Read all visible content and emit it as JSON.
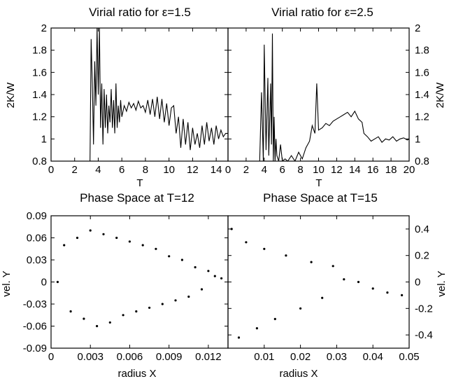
{
  "chart_data": [
    {
      "type": "line",
      "title": "Virial ratio for ε=1.5",
      "xlabel": "T",
      "ylabel": "2K/W",
      "xlim": [
        0,
        15
      ],
      "ylim": [
        0.8,
        2
      ],
      "xticks": [
        "0",
        "2",
        "4",
        "6",
        "8",
        "10",
        "12",
        "14"
      ],
      "yticks": [
        "0.8",
        "1",
        "1.2",
        "1.4",
        "1.6",
        "1.8",
        "2"
      ],
      "grid": false,
      "series": [
        {
          "x": [
            3.3,
            3.4,
            3.5,
            3.6,
            3.7,
            3.8,
            3.9,
            4.0,
            4.1,
            4.2,
            4.3,
            4.4,
            4.5,
            4.6,
            4.7,
            4.8,
            4.9,
            5.0,
            5.1,
            5.2,
            5.3,
            5.4,
            5.5,
            5.6,
            5.7,
            5.8,
            5.9,
            6.0,
            6.2,
            6.4,
            6.6,
            6.8,
            7.0,
            7.2,
            7.4,
            7.6,
            7.8,
            8.0,
            8.2,
            8.4,
            8.6,
            8.8,
            9.0,
            9.2,
            9.4,
            9.6,
            9.8,
            10.0,
            10.2,
            10.4,
            10.6,
            10.8,
            11.0,
            11.2,
            11.4,
            11.6,
            11.8,
            12.0,
            12.2,
            12.4,
            12.6,
            12.8,
            13.0,
            13.2,
            13.4,
            13.6,
            13.8,
            14.0,
            14.2,
            14.4,
            14.6,
            14.8,
            15.0
          ],
          "y": [
            0.8,
            1.9,
            1.5,
            0.95,
            1.7,
            1.3,
            2.0,
            1.4,
            2.0,
            1.1,
            1.5,
            0.95,
            1.45,
            1.1,
            1.4,
            1.05,
            1.3,
            1.15,
            1.45,
            1.1,
            1.35,
            1.05,
            1.5,
            1.1,
            1.3,
            1.15,
            1.35,
            1.2,
            1.3,
            1.25,
            1.33,
            1.28,
            1.32,
            1.26,
            1.34,
            1.28,
            1.3,
            1.24,
            1.35,
            1.22,
            1.36,
            1.2,
            1.38,
            1.18,
            1.36,
            1.15,
            1.32,
            1.12,
            1.28,
            1.3,
            1.05,
            1.2,
            0.92,
            1.18,
            0.95,
            1.15,
            0.9,
            1.1,
            0.95,
            1.05,
            0.92,
            1.12,
            0.95,
            1.15,
            0.98,
            1.1,
            0.95,
            1.12,
            1.0,
            1.08,
            1.02,
            1.05,
            1.05
          ]
        }
      ]
    },
    {
      "type": "line",
      "title": "Virial ratio for ε=2.5",
      "xlabel": "T",
      "ylabel": "2K/W",
      "xlim": [
        0,
        20
      ],
      "ylim": [
        0.8,
        2
      ],
      "xticks": [
        "0",
        "2",
        "4",
        "6",
        "8",
        "10",
        "12",
        "14",
        "16",
        "18",
        "20"
      ],
      "yticks": [
        "0.8",
        "1",
        "1.2",
        "1.4",
        "1.6",
        "1.8",
        "2"
      ],
      "grid": false,
      "series": [
        {
          "x": [
            3.5,
            3.7,
            3.9,
            4.0,
            4.2,
            4.4,
            4.5,
            4.7,
            4.8,
            4.9,
            5.0,
            5.1,
            5.2,
            5.3,
            5.4,
            5.6,
            5.8,
            6.0,
            6.3,
            6.6,
            7.0,
            7.4,
            7.8,
            8.2,
            8.6,
            9.0,
            9.3,
            9.6,
            9.8,
            10.0,
            10.4,
            10.8,
            11.2,
            11.6,
            12.0,
            12.4,
            12.8,
            13.2,
            13.6,
            14.0,
            14.4,
            14.8,
            15.0,
            15.4,
            15.8,
            16.2,
            16.6,
            17.0,
            17.4,
            17.8,
            18.2,
            18.6,
            19.0,
            19.4,
            19.8,
            20.0
          ],
          "y": [
            0.8,
            1.42,
            0.8,
            1.85,
            0.9,
            1.55,
            0.85,
            1.5,
            0.95,
            1.95,
            0.8,
            1.2,
            0.8,
            1.0,
            0.85,
            0.8,
            0.95,
            0.8,
            0.82,
            0.8,
            0.85,
            0.8,
            0.88,
            0.82,
            0.92,
            0.98,
            1.12,
            1.05,
            1.5,
            1.08,
            1.1,
            1.14,
            1.12,
            1.16,
            1.18,
            1.2,
            1.22,
            1.24,
            1.2,
            1.25,
            1.18,
            1.15,
            1.05,
            1.02,
            0.98,
            1.0,
            1.02,
            0.97,
            1.0,
            0.99,
            1.02,
            0.98,
            1.0,
            1.01,
            0.99,
            1.0
          ]
        }
      ]
    },
    {
      "type": "scatter",
      "title": "Phase Space at T=12",
      "xlabel": "radius X",
      "ylabel": "vel. Y",
      "xlim": [
        0,
        0.0135
      ],
      "ylim": [
        -0.09,
        0.09
      ],
      "xticks": [
        "0",
        "0.003",
        "0.006",
        "0.009",
        "0.012"
      ],
      "yticks": [
        "0.09",
        "0.06",
        "0.03",
        "0",
        "-0.03",
        "-0.06",
        "-0.09"
      ],
      "grid": false,
      "series": [
        {
          "x": [
            0.0005,
            0.001,
            0.0015,
            0.002,
            0.0025,
            0.003,
            0.0035,
            0.004,
            0.0045,
            0.005,
            0.0055,
            0.006,
            0.0065,
            0.007,
            0.0075,
            0.008,
            0.0085,
            0.009,
            0.0095,
            0.01,
            0.0105,
            0.011,
            0.0115,
            0.012,
            0.0125,
            0.013
          ],
          "y": [
            0.0,
            0.05,
            -0.04,
            0.06,
            -0.05,
            0.07,
            -0.06,
            0.065,
            -0.055,
            0.06,
            -0.045,
            0.055,
            -0.04,
            0.05,
            -0.035,
            0.045,
            -0.03,
            0.035,
            -0.025,
            0.03,
            -0.02,
            0.02,
            -0.01,
            0.015,
            0.008,
            0.005
          ]
        }
      ]
    },
    {
      "type": "scatter",
      "title": "Phase Space at T=15",
      "xlabel": "radius X",
      "ylabel": "vel. Y",
      "xlim": [
        0,
        0.05
      ],
      "ylim": [
        -0.5,
        0.5
      ],
      "xticks": [
        "0.01",
        "0.02",
        "0.03",
        "0.04",
        "0.05"
      ],
      "yticks": [
        "0.4",
        "0.2",
        "0",
        "-0.2",
        "-0.4"
      ],
      "grid": false,
      "series": [
        {
          "x": [
            0.001,
            0.003,
            0.005,
            0.008,
            0.01,
            0.013,
            0.016,
            0.02,
            0.023,
            0.026,
            0.029,
            0.032,
            0.036,
            0.04,
            0.044,
            0.048
          ],
          "y": [
            0.4,
            -0.42,
            0.3,
            -0.35,
            0.25,
            -0.28,
            0.2,
            -0.2,
            0.15,
            -0.12,
            0.12,
            0.02,
            0.0,
            -0.05,
            -0.08,
            -0.1
          ]
        }
      ]
    }
  ]
}
